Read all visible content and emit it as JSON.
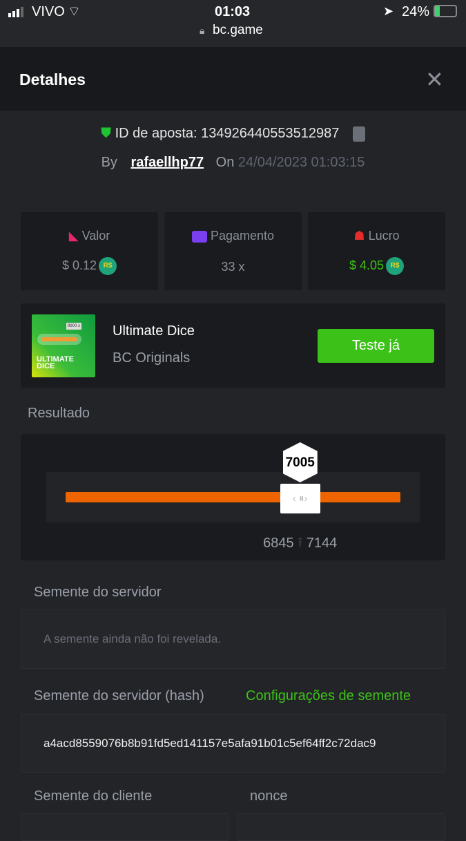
{
  "status_bar": {
    "carrier": "VIVO",
    "time": "01:03",
    "battery": "24%",
    "url": "bc.game"
  },
  "header": {
    "title": "Detalhes"
  },
  "bet": {
    "id_label": "ID de aposta:",
    "id": "134926440553512987",
    "by_label": "By",
    "user": "rafaellhp77",
    "on_label": "On",
    "date": "24/04/2023 01:03:15"
  },
  "stats": [
    {
      "label": "Valor",
      "value": "$ 0.12",
      "currency": "R$",
      "icon": "money-bag-icon",
      "color": "#e8266d"
    },
    {
      "label": "Pagamento",
      "value": "33 x",
      "icon": "card-icon",
      "color": "#7b3ff2"
    },
    {
      "label": "Lucro",
      "value": "$ 4.05",
      "currency": "R$",
      "icon": "hand-user-icon",
      "color": "#e52b2b",
      "value_color": "#3bc117"
    }
  ],
  "game": {
    "name": "Ultimate Dice",
    "provider": "BC Originals",
    "button": "Teste já",
    "thumb_text": "ULTIMATE DICE",
    "thumb_badge": "9900 x"
  },
  "result": {
    "title": "Resultado",
    "value": "7005",
    "value_percent": 70.05,
    "range_low": "6845",
    "range_high": "7144",
    "bar_color": "#ee6400"
  },
  "server_seed": {
    "label": "Semente do servidor",
    "value": "A semente ainda não foi revelada."
  },
  "server_hash": {
    "label": "Semente do servidor (hash)",
    "link": "Configurações de semente",
    "value": "a4acd8559076b8b91fd5ed141157e5afa91b01c5ef64ff2c72dac9"
  },
  "client_seed": {
    "label": "Semente do cliente"
  },
  "nonce": {
    "label": "nonce"
  }
}
